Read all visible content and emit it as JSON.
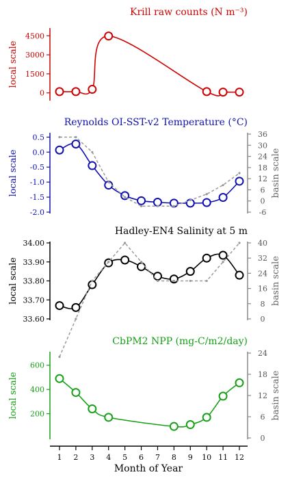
{
  "x_axis": {
    "label": "Month of Year",
    "ticks": [
      1,
      2,
      3,
      4,
      5,
      6,
      7,
      8,
      9,
      10,
      11,
      12
    ]
  },
  "chart_data": [
    {
      "type": "line",
      "title": "Krill raw counts (N m⁻³)",
      "color": "#cc0000",
      "ylabel_left": "local scale",
      "left_ticks": [
        "0",
        "1500",
        "3000",
        "4500"
      ],
      "left_tick_values": [
        0,
        1500,
        3000,
        4500
      ],
      "left_ylim": [
        -500,
        5000
      ],
      "x": [
        1,
        2,
        3,
        4,
        10,
        11,
        12
      ],
      "series": [
        {
          "axis": "local",
          "style": "solid-with-circles",
          "values": [
            100,
            100,
            280,
            4480,
            100,
            60,
            60
          ]
        }
      ]
    },
    {
      "type": "line",
      "title": "Reynolds OI-SST-v2 Temperature (°C)",
      "color": "#1010b0",
      "ylabel_left": "local scale",
      "ylabel_right": "basin scale",
      "left_ticks": [
        "0.5",
        "0.0",
        "-0.5",
        "-1.0",
        "-1.5",
        "-2.0"
      ],
      "left_tick_values": [
        0.5,
        0.0,
        -0.5,
        -1.0,
        -1.5,
        -2.0
      ],
      "left_ylim": [
        -2.0,
        0.6
      ],
      "right_ticks": [
        "36",
        "30",
        "24",
        "18",
        "12",
        "6",
        "0",
        "-6"
      ],
      "right_tick_values": [
        36,
        30,
        24,
        18,
        12,
        6,
        0,
        -6
      ],
      "right_ylim": [
        -6,
        36
      ],
      "x": [
        1,
        2,
        3,
        4,
        5,
        6,
        7,
        8,
        9,
        10,
        11,
        12
      ],
      "series": [
        {
          "axis": "local",
          "style": "solid-with-circles",
          "values": [
            0.07,
            0.27,
            -0.45,
            -1.1,
            -1.45,
            -1.62,
            -1.67,
            -1.7,
            -1.7,
            -1.68,
            -1.51,
            -0.97
          ]
        },
        {
          "axis": "basin",
          "style": "dashed-gray",
          "values": [
            0.5,
            0.5,
            0.0,
            -1.0,
            -1.5,
            -1.8,
            -1.8,
            -1.8,
            -1.6,
            -1.4,
            -1.1,
            -0.7
          ]
        }
      ]
    },
    {
      "type": "line",
      "title": "Hadley-EN4 Salinity at 5 m",
      "color": "#000000",
      "ylabel_left": "local scale",
      "ylabel_right": "basin scale",
      "left_ticks": [
        "34.00",
        "33.90",
        "33.80",
        "33.70",
        "33.60"
      ],
      "left_tick_values": [
        34.0,
        33.9,
        33.8,
        33.7,
        33.6
      ],
      "left_ylim": [
        33.6,
        34.0
      ],
      "right_ticks": [
        "40",
        "32",
        "24",
        "16",
        "8",
        "0"
      ],
      "right_tick_values": [
        40,
        32,
        24,
        16,
        8,
        0
      ],
      "right_ylim": [
        0,
        40
      ],
      "x": [
        1,
        2,
        3,
        4,
        5,
        6,
        7,
        8,
        9,
        10,
        11,
        12
      ],
      "series": [
        {
          "axis": "local",
          "style": "solid-with-circles",
          "values": [
            33.67,
            33.66,
            33.78,
            33.895,
            33.91,
            33.875,
            33.825,
            33.81,
            33.85,
            33.92,
            33.935,
            33.83
          ]
        },
        {
          "axis": "basin",
          "style": "dashed-gray",
          "values": [
            33.4,
            33.6,
            33.8,
            33.9,
            34.0,
            33.9,
            33.8,
            33.8,
            33.8,
            33.8,
            33.9,
            34.0
          ]
        }
      ]
    },
    {
      "type": "line",
      "title": "CbPM2 NPP (mg-C/m2/day)",
      "color": "#16a016",
      "ylabel_left": "local scale",
      "ylabel_right": "basin scale",
      "left_ticks": [
        "600",
        "400",
        "200"
      ],
      "left_tick_values": [
        600,
        400,
        200
      ],
      "left_ylim": [
        0,
        700
      ],
      "right_ticks": [
        "24",
        "18",
        "12",
        "6",
        "0"
      ],
      "right_tick_values": [
        24,
        18,
        12,
        6,
        0
      ],
      "right_ylim": [
        0,
        24
      ],
      "x": [
        1,
        2,
        3,
        4,
        8,
        9,
        10,
        11,
        12
      ],
      "series": [
        {
          "axis": "local",
          "style": "solid-with-circles",
          "values": [
            490,
            375,
            240,
            170,
            95,
            110,
            170,
            345,
            455
          ]
        }
      ]
    }
  ]
}
